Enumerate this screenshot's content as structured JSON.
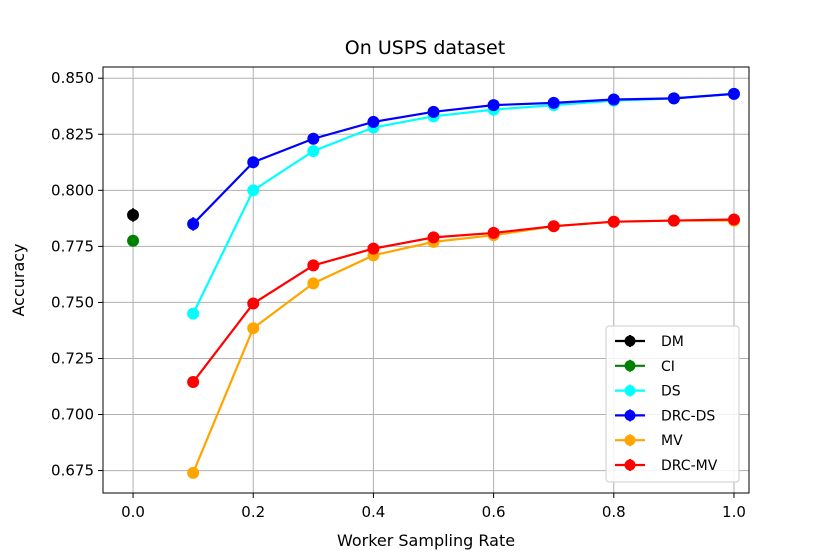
{
  "chart_data": {
    "type": "line",
    "title": "On USPS dataset",
    "xlabel": "Worker Sampling Rate",
    "ylabel": "Accuracy",
    "xlim": [
      -0.05,
      1.025
    ],
    "ylim": [
      0.665,
      0.855
    ],
    "xticks": [
      0.0,
      0.2,
      0.4,
      0.6,
      0.8,
      1.0
    ],
    "xtick_labels": [
      "0.0",
      "0.2",
      "0.4",
      "0.6",
      "0.8",
      "1.0"
    ],
    "yticks": [
      0.675,
      0.7,
      0.725,
      0.75,
      0.775,
      0.8,
      0.825,
      0.85
    ],
    "ytick_labels": [
      "0.675",
      "0.700",
      "0.725",
      "0.750",
      "0.775",
      "0.800",
      "0.825",
      "0.850"
    ],
    "grid": true,
    "legend_position": "lower-right",
    "series": [
      {
        "name": "DM",
        "color": "#000000",
        "x": [
          0.0
        ],
        "y": [
          0.789
        ],
        "err": [
          0.003
        ]
      },
      {
        "name": "CI",
        "color": "#008000",
        "x": [
          0.0
        ],
        "y": [
          0.7775
        ],
        "err": [
          0.002
        ]
      },
      {
        "name": "DS",
        "color": "#00ffff",
        "x": [
          0.1,
          0.2,
          0.3,
          0.4,
          0.5,
          0.6,
          0.7,
          0.8,
          0.9,
          1.0
        ],
        "y": [
          0.745,
          0.8,
          0.8175,
          0.828,
          0.833,
          0.836,
          0.838,
          0.84,
          0.841,
          0.843
        ],
        "err": [
          0.002,
          0.002,
          0.001,
          0.001,
          0.001,
          0.001,
          0.001,
          0.001,
          0.001,
          0.001
        ]
      },
      {
        "name": "DRC-DS",
        "color": "#0000ff",
        "x": [
          0.1,
          0.2,
          0.3,
          0.4,
          0.5,
          0.6,
          0.7,
          0.8,
          0.9,
          1.0
        ],
        "y": [
          0.785,
          0.8125,
          0.823,
          0.8305,
          0.835,
          0.838,
          0.839,
          0.8405,
          0.841,
          0.843
        ],
        "err": [
          0.003,
          0.002,
          0.001,
          0.001,
          0.001,
          0.001,
          0.001,
          0.001,
          0.001,
          0.001
        ]
      },
      {
        "name": "MV",
        "color": "#ffa500",
        "x": [
          0.1,
          0.2,
          0.3,
          0.4,
          0.5,
          0.6,
          0.7,
          0.8,
          0.9,
          1.0
        ],
        "y": [
          0.674,
          0.7385,
          0.7585,
          0.771,
          0.777,
          0.78,
          0.784,
          0.786,
          0.7865,
          0.7865
        ],
        "err": [
          0.002,
          0.002,
          0.001,
          0.001,
          0.001,
          0.001,
          0.001,
          0.001,
          0.001,
          0.001
        ]
      },
      {
        "name": "DRC-MV",
        "color": "#ff0000",
        "x": [
          0.1,
          0.2,
          0.3,
          0.4,
          0.5,
          0.6,
          0.7,
          0.8,
          0.9,
          1.0
        ],
        "y": [
          0.7145,
          0.7495,
          0.7665,
          0.774,
          0.779,
          0.781,
          0.784,
          0.786,
          0.7865,
          0.787
        ],
        "err": [
          0.002,
          0.002,
          0.001,
          0.001,
          0.001,
          0.001,
          0.001,
          0.001,
          0.001,
          0.001
        ]
      }
    ]
  }
}
